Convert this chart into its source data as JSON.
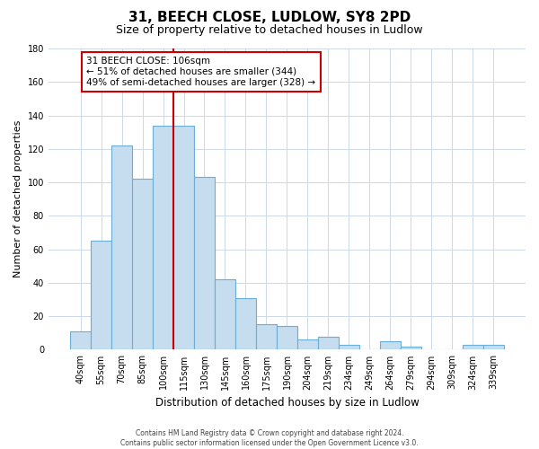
{
  "title": "31, BEECH CLOSE, LUDLOW, SY8 2PD",
  "subtitle": "Size of property relative to detached houses in Ludlow",
  "xlabel": "Distribution of detached houses by size in Ludlow",
  "ylabel": "Number of detached properties",
  "bar_labels": [
    "40sqm",
    "55sqm",
    "70sqm",
    "85sqm",
    "100sqm",
    "115sqm",
    "130sqm",
    "145sqm",
    "160sqm",
    "175sqm",
    "190sqm",
    "204sqm",
    "219sqm",
    "234sqm",
    "249sqm",
    "264sqm",
    "279sqm",
    "294sqm",
    "309sqm",
    "324sqm",
    "339sqm"
  ],
  "bar_values": [
    11,
    65,
    122,
    102,
    134,
    134,
    103,
    42,
    31,
    15,
    14,
    6,
    8,
    3,
    0,
    5,
    2,
    0,
    0,
    3,
    3
  ],
  "bar_color": "#c5ddef",
  "bar_edge_color": "#6aaed6",
  "vline_color": "#cc0000",
  "vline_x_index": 4.5,
  "ylim": [
    0,
    180
  ],
  "yticks": [
    0,
    20,
    40,
    60,
    80,
    100,
    120,
    140,
    160,
    180
  ],
  "annotation_title": "31 BEECH CLOSE: 106sqm",
  "annotation_line1": "← 51% of detached houses are smaller (344)",
  "annotation_line2": "49% of semi-detached houses are larger (328) →",
  "annotation_box_color": "#ffffff",
  "annotation_box_edge": "#cc0000",
  "footer_line1": "Contains HM Land Registry data © Crown copyright and database right 2024.",
  "footer_line2": "Contains public sector information licensed under the Open Government Licence v3.0.",
  "background_color": "#ffffff",
  "grid_color": "#cdd8e8"
}
